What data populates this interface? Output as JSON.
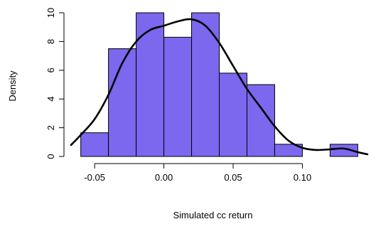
{
  "chart_data": {
    "type": "bar",
    "title": "",
    "xlabel": "Simulated cc return",
    "ylabel": "Density",
    "bar_color": "#7B68EE",
    "bar_edge_color": "#000000",
    "curve_color": "#000000",
    "bins": [
      {
        "x0": -0.06,
        "x1": -0.04,
        "value": 1.65
      },
      {
        "x0": -0.04,
        "x1": -0.02,
        "value": 7.5
      },
      {
        "x0": -0.02,
        "x1": 0.0,
        "value": 10.0
      },
      {
        "x0": 0.0,
        "x1": 0.02,
        "value": 8.3
      },
      {
        "x0": 0.02,
        "x1": 0.04,
        "value": 10.0
      },
      {
        "x0": 0.04,
        "x1": 0.06,
        "value": 5.8
      },
      {
        "x0": 0.06,
        "x1": 0.08,
        "value": 5.0
      },
      {
        "x0": 0.08,
        "x1": 0.1,
        "value": 0.85
      },
      {
        "x0": 0.1,
        "x1": 0.12,
        "value": 0.0
      },
      {
        "x0": 0.12,
        "x1": 0.14,
        "value": 0.85
      }
    ],
    "density_curve": {
      "name": "",
      "x": [
        -0.067,
        -0.06,
        -0.05,
        -0.04,
        -0.03,
        -0.02,
        -0.01,
        0.0,
        0.01,
        0.02,
        0.03,
        0.04,
        0.05,
        0.06,
        0.07,
        0.08,
        0.09,
        0.1,
        0.11,
        0.12,
        0.13,
        0.14,
        0.147
      ],
      "y": [
        0.8,
        1.5,
        2.6,
        4.3,
        6.5,
        8.0,
        8.8,
        9.1,
        9.4,
        9.55,
        9.1,
        7.9,
        6.3,
        4.7,
        3.4,
        2.1,
        1.1,
        0.6,
        0.45,
        0.5,
        0.55,
        0.3,
        0.15
      ]
    },
    "xlim": [
      -0.067,
      0.147
    ],
    "ylim": [
      0,
      10
    ],
    "x_ticks": [
      -0.05,
      0.0,
      0.05,
      0.1
    ],
    "x_tick_labels": [
      "-0.05",
      "0.00",
      "0.05",
      "0.10"
    ],
    "y_ticks": [
      0,
      2,
      4,
      6,
      8,
      10
    ],
    "y_tick_labels": [
      "0",
      "2",
      "4",
      "6",
      "8",
      "10"
    ],
    "grid": false,
    "legend": "none"
  }
}
